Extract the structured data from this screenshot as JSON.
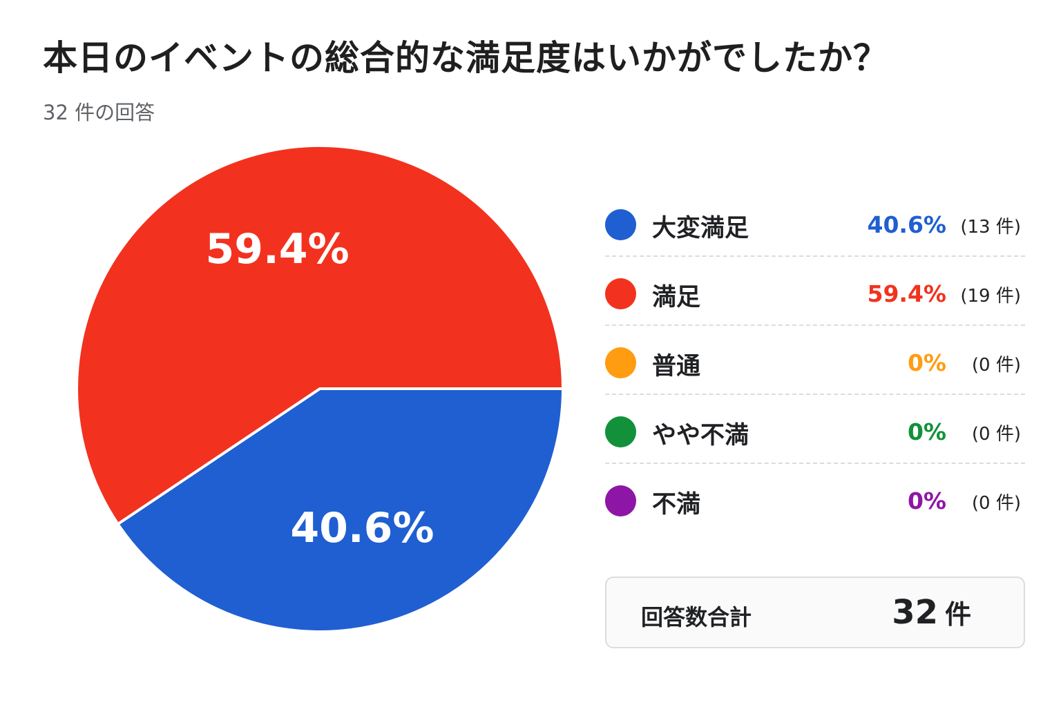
{
  "title": "本日のイベントの総合的な満足度はいかがでしたか？",
  "subtitle": "32 件の回答",
  "chart_data": {
    "type": "pie",
    "title": "本日のイベントの総合的な満足度はいかがでしたか？",
    "total_responses": 32,
    "slices": [
      {
        "label": "大変満足",
        "percent": 40.6,
        "percent_label": "40.6%",
        "count": 13,
        "count_label": "(13 件)",
        "color": "#1f5fd1"
      },
      {
        "label": "満足",
        "percent": 59.4,
        "percent_label": "59.4%",
        "count": 19,
        "count_label": "(19 件)",
        "color": "#f2321e"
      },
      {
        "label": "普通",
        "percent": 0,
        "percent_label": "0%",
        "count": 0,
        "count_label": "(0 件)",
        "color": "#ff9c12"
      },
      {
        "label": "やや不満",
        "percent": 0,
        "percent_label": "0%",
        "count": 0,
        "count_label": "(0 件)",
        "color": "#12913a"
      },
      {
        "label": "不満",
        "percent": 0,
        "percent_label": "0%",
        "count": 0,
        "count_label": "(0 件)",
        "color": "#8e16a6"
      }
    ]
  },
  "total": {
    "label": "回答数合計",
    "value": "32",
    "unit": "件"
  }
}
